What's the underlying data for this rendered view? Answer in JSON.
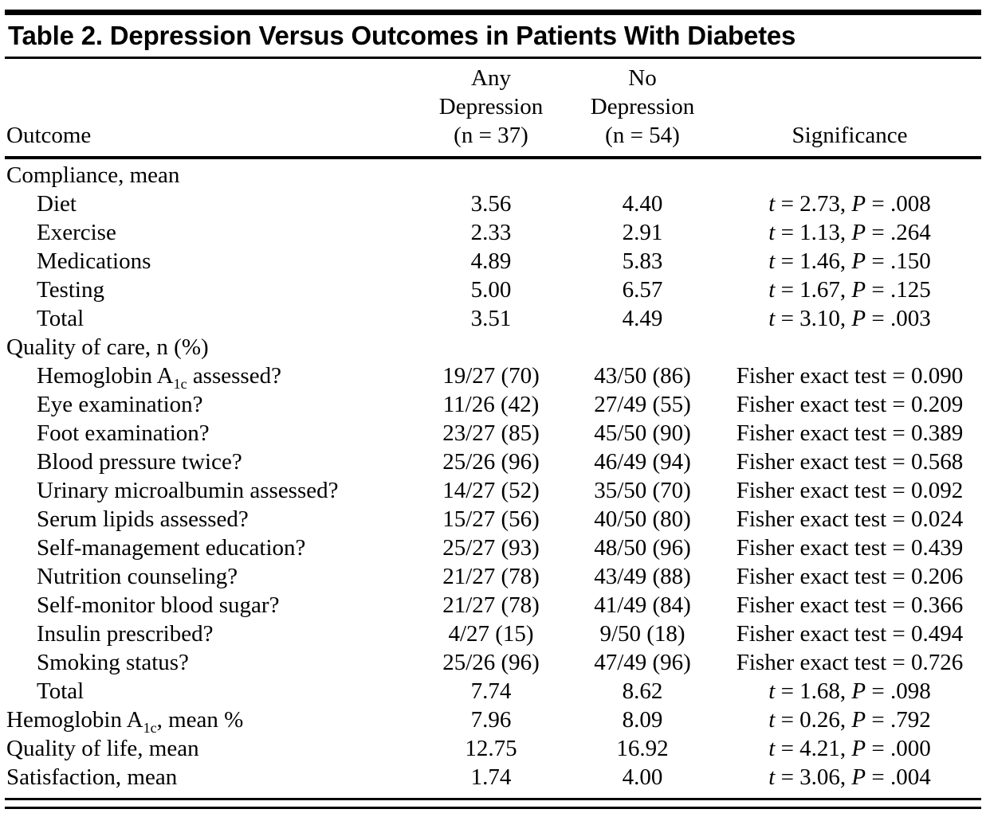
{
  "title": "Table 2. Depression Versus Outcomes in Patients With Diabetes",
  "colors": {
    "text": "#000000",
    "background": "#ffffff",
    "rule": "#000000"
  },
  "columns": {
    "outcome": "Outcome",
    "any": [
      "Any",
      "Depression",
      "(n = 37)"
    ],
    "no": [
      "No",
      "Depression",
      "(n = 54)"
    ],
    "significance": "Significance"
  },
  "rows": [
    {
      "type": "section",
      "label": "Compliance, mean"
    },
    {
      "type": "data",
      "indent": true,
      "label": "Diet",
      "any": "3.56",
      "no": "4.40",
      "sig": "t = 2.73, P = .008"
    },
    {
      "type": "data",
      "indent": true,
      "label": "Exercise",
      "any": "2.33",
      "no": "2.91",
      "sig": "t = 1.13, P = .264"
    },
    {
      "type": "data",
      "indent": true,
      "label": "Medications",
      "any": "4.89",
      "no": "5.83",
      "sig": "t = 1.46, P = .150"
    },
    {
      "type": "data",
      "indent": true,
      "label": "Testing",
      "any": "5.00",
      "no": "6.57",
      "sig": "t = 1.67, P = .125"
    },
    {
      "type": "data",
      "indent": true,
      "label": "Total",
      "any": "3.51",
      "no": "4.49",
      "sig": "t = 3.10, P = .003"
    },
    {
      "type": "section",
      "label": "Quality of care, n (%)"
    },
    {
      "type": "data",
      "indent": true,
      "label": "Hemoglobin A",
      "label_sub": "1c",
      "label_rest": " assessed?",
      "any": "19/27 (70)",
      "no": "43/50 (86)",
      "sig": "Fisher exact test = 0.090"
    },
    {
      "type": "data",
      "indent": true,
      "label": "Eye examination?",
      "any": "11/26 (42)",
      "no": "27/49 (55)",
      "sig": "Fisher exact test = 0.209"
    },
    {
      "type": "data",
      "indent": true,
      "label": "Foot examination?",
      "any": "23/27 (85)",
      "no": "45/50 (90)",
      "sig": "Fisher exact test = 0.389"
    },
    {
      "type": "data",
      "indent": true,
      "label": "Blood pressure twice?",
      "any": "25/26 (96)",
      "no": "46/49 (94)",
      "sig": "Fisher exact test = 0.568"
    },
    {
      "type": "data",
      "indent": true,
      "label": "Urinary microalbumin assessed?",
      "any": "14/27 (52)",
      "no": "35/50 (70)",
      "sig": "Fisher exact test = 0.092"
    },
    {
      "type": "data",
      "indent": true,
      "label": "Serum lipids assessed?",
      "any": "15/27 (56)",
      "no": "40/50 (80)",
      "sig": "Fisher exact test = 0.024"
    },
    {
      "type": "data",
      "indent": true,
      "label": "Self-management education?",
      "any": "25/27 (93)",
      "no": "48/50 (96)",
      "sig": "Fisher exact test = 0.439"
    },
    {
      "type": "data",
      "indent": true,
      "label": "Nutrition counseling?",
      "any": "21/27 (78)",
      "no": "43/49 (88)",
      "sig": "Fisher exact test = 0.206"
    },
    {
      "type": "data",
      "indent": true,
      "label": "Self-monitor blood sugar?",
      "any": "21/27 (78)",
      "no": "41/49 (84)",
      "sig": "Fisher exact test = 0.366"
    },
    {
      "type": "data",
      "indent": true,
      "label": "Insulin prescribed?",
      "any": "4/27 (15)",
      "no": "9/50 (18)",
      "sig": "Fisher exact test = 0.494"
    },
    {
      "type": "data",
      "indent": true,
      "label": "Smoking status?",
      "any": "25/26 (96)",
      "no": "47/49 (96)",
      "sig": "Fisher exact test = 0.726"
    },
    {
      "type": "data",
      "indent": true,
      "label": "Total",
      "any": "7.74",
      "no": "8.62",
      "sig": "t = 1.68, P = .098"
    },
    {
      "type": "data",
      "indent": false,
      "label": "Hemoglobin A",
      "label_sub": "1c",
      "label_rest": ", mean %",
      "any": "7.96",
      "no": "8.09",
      "sig": "t = 0.26, P = .792"
    },
    {
      "type": "data",
      "indent": false,
      "label": "Quality of life, mean",
      "any": "12.75",
      "no": "16.92",
      "sig": "t = 4.21, P = .000"
    },
    {
      "type": "data",
      "indent": false,
      "label": "Satisfaction, mean",
      "any": "1.74",
      "no": "4.00",
      "sig": "t = 3.06, P = .004"
    }
  ]
}
